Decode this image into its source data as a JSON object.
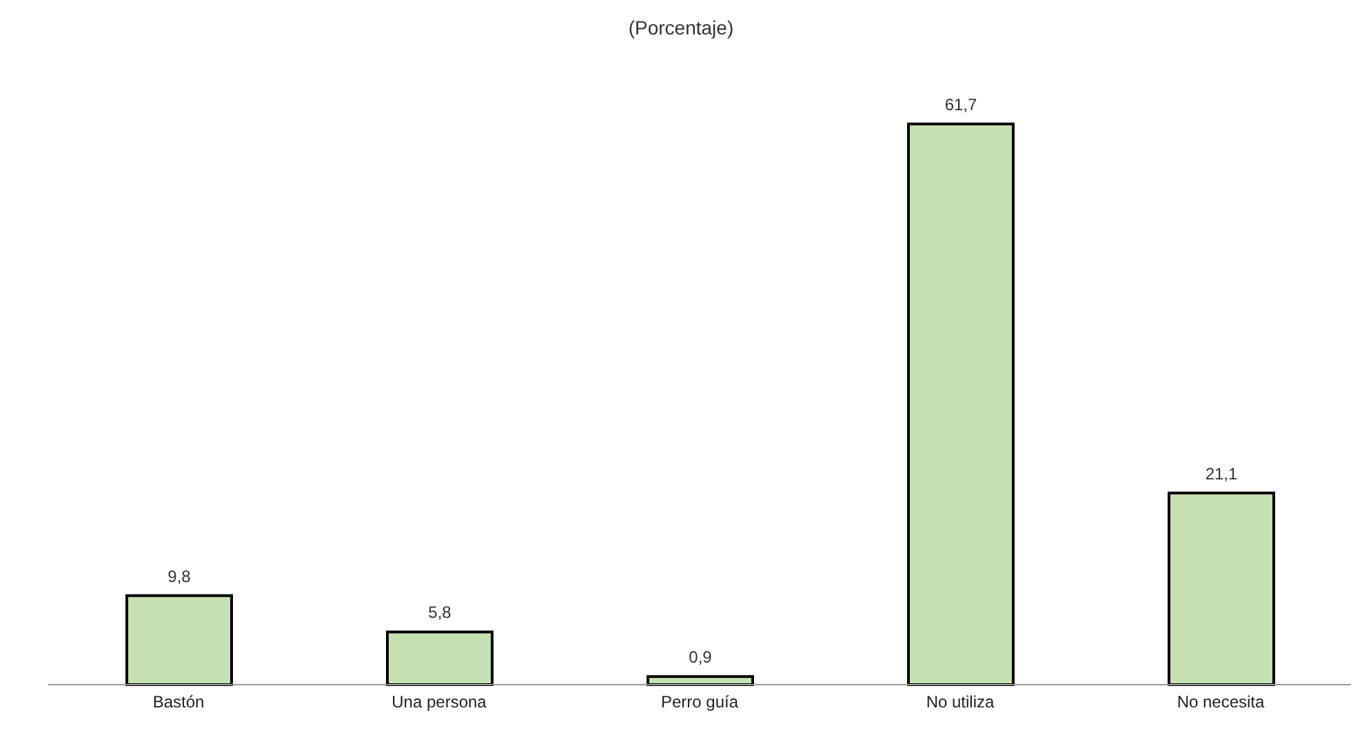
{
  "chart_data": {
    "type": "bar",
    "title": "(Porcentaje)",
    "categories": [
      "Bastón",
      "Una persona",
      "Perro guía",
      "No utiliza",
      "No necesita"
    ],
    "values": [
      9.8,
      5.8,
      0.9,
      61.7,
      21.1
    ],
    "value_labels": [
      "9,8",
      "5,8",
      "0,9",
      "61,7",
      "21,1"
    ],
    "color": "#c6e0b4"
  }
}
